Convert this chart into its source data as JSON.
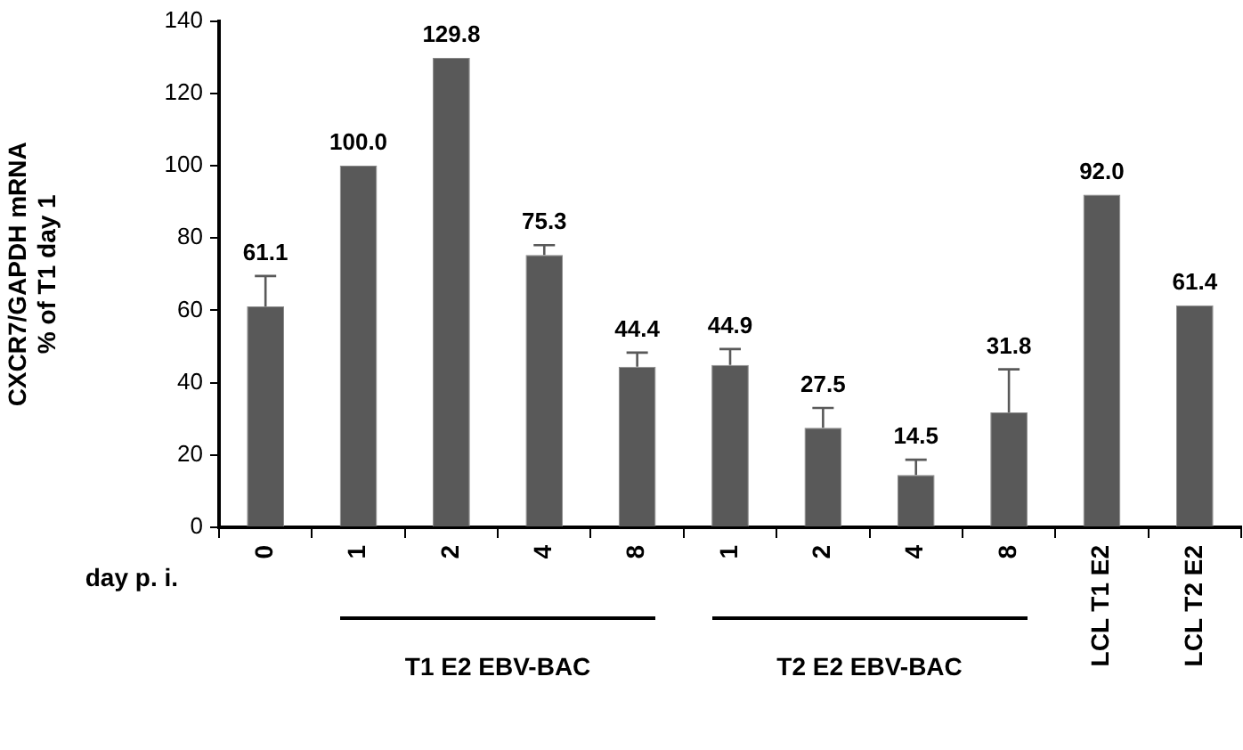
{
  "chart_data": {
    "type": "bar",
    "ylabel": "CXCR7/GAPDH mRNA\n% of T1 day 1",
    "categories": [
      "0",
      "1",
      "2",
      "4",
      "8",
      "1",
      "2",
      "4",
      "8",
      "LCL T1 E2",
      "LCL T2 E2"
    ],
    "values": [
      61.1,
      100.0,
      129.8,
      75.3,
      44.4,
      44.9,
      27.5,
      14.5,
      31.8,
      92.0,
      61.4
    ],
    "errors": [
      [
        61.1,
        69.5
      ],
      null,
      null,
      [
        75.3,
        78
      ],
      [
        44.4,
        48.3
      ],
      [
        44.9,
        49.3
      ],
      [
        27.5,
        33
      ],
      [
        14.5,
        18.7
      ],
      [
        31.8,
        43.7
      ],
      null,
      null
    ],
    "value_labels": [
      "61.1",
      "100.0",
      "129.8",
      "75.3",
      "44.4",
      "44.9",
      "27.5",
      "14.5",
      "31.8",
      "92.0",
      "61.4"
    ],
    "color": "#595959",
    "ylim": [
      0,
      140
    ],
    "yticks": [
      0,
      20,
      40,
      60,
      80,
      100,
      120,
      140
    ],
    "grid": false,
    "legend": false,
    "annotations": [
      "day p. i.",
      "T1 E2 EBV-BAC",
      "T2 E2 EBV-BAC"
    ]
  }
}
